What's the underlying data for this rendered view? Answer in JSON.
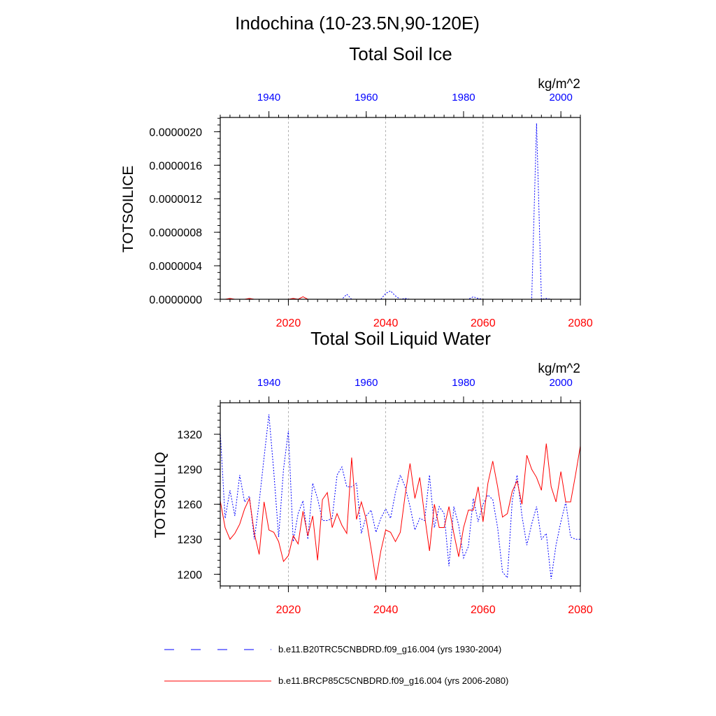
{
  "page_title": "Indochina (10-23.5N,90-120E)",
  "colors": {
    "hist": "#0000ff",
    "rcp": "#ff0000",
    "grid": "#a0a0a0",
    "axis": "#000000"
  },
  "legend": [
    {
      "label": "b.e11.B20TRC5CNBDRD.f09_g16.004 (yrs 1930-2004)",
      "color": "#0000ff",
      "dash": "dashed"
    },
    {
      "label": "b.e11.BRCP85C5CNBDRD.f09_g16.004 (yrs 2006-2080)",
      "color": "#ff0000",
      "dash": "solid"
    }
  ],
  "chart_data": [
    {
      "type": "line",
      "title": "Total Soil Ice",
      "units": "kg/m^2",
      "ylabel": "TOTSOILICE",
      "ylim": [
        0,
        2.17e-06
      ],
      "yticks": [
        0,
        4e-07,
        8e-07,
        1.2e-06,
        1.6e-06,
        2e-06
      ],
      "ytick_labels": [
        "0.0000000",
        "0.0000004",
        "0.0000008",
        "0.0000012",
        "0.0000016",
        "0.0000020"
      ],
      "x_bottom": {
        "range": [
          2006,
          2080
        ],
        "ticks": [
          2020,
          2040,
          2060,
          2080
        ],
        "color": "#ff0000"
      },
      "x_top": {
        "range": [
          1930,
          2004
        ],
        "ticks": [
          1940,
          1960,
          1980,
          2000
        ],
        "color": "#0000ff"
      },
      "grid_x": [
        2020,
        2040,
        2060
      ],
      "series": [
        {
          "axis": "top",
          "style": "dashed",
          "color": "#0000ff",
          "x": [
            1930,
            1931,
            1932,
            1933,
            1934,
            1935,
            1936,
            1937,
            1938,
            1939,
            1940,
            1941,
            1942,
            1943,
            1944,
            1945,
            1946,
            1947,
            1948,
            1949,
            1950,
            1951,
            1952,
            1953,
            1954,
            1955,
            1956,
            1957,
            1958,
            1959,
            1960,
            1961,
            1962,
            1963,
            1964,
            1965,
            1966,
            1967,
            1968,
            1969,
            1970,
            1971,
            1972,
            1973,
            1974,
            1975,
            1976,
            1977,
            1978,
            1979,
            1980,
            1981,
            1982,
            1983,
            1984,
            1985,
            1986,
            1987,
            1988,
            1989,
            1990,
            1991,
            1992,
            1993,
            1994,
            1995,
            1996,
            1997,
            1998,
            1999,
            2000,
            2001,
            2002,
            2003,
            2004
          ],
          "y": [
            0,
            0,
            0,
            0,
            0,
            0,
            0,
            0,
            0,
            0,
            0,
            0,
            0,
            0,
            0,
            0,
            0,
            0,
            0,
            0,
            0,
            0,
            0,
            0,
            0,
            0,
            6e-08,
            0,
            0,
            0,
            0,
            0,
            0,
            0,
            7e-08,
            1e-07,
            4e-08,
            0,
            1e-08,
            0,
            0,
            0,
            0,
            0,
            0,
            0,
            0,
            0,
            0,
            0,
            0,
            0,
            3e-08,
            1e-08,
            0,
            0,
            0,
            0,
            0,
            0,
            0,
            0,
            0,
            0,
            0,
            2.1e-06,
            0,
            1e-08,
            0,
            0,
            0,
            0,
            0,
            0,
            0
          ]
        },
        {
          "axis": "bottom",
          "style": "solid",
          "color": "#ff0000",
          "x": [
            2006,
            2007,
            2008,
            2009,
            2010,
            2011,
            2012,
            2013,
            2014,
            2015,
            2016,
            2017,
            2018,
            2019,
            2020,
            2021,
            2022,
            2023,
            2024,
            2025,
            2026,
            2027,
            2028,
            2029,
            2030,
            2031,
            2032,
            2033,
            2034,
            2035,
            2036,
            2037,
            2038,
            2039,
            2040,
            2041,
            2042,
            2043,
            2044,
            2045,
            2046,
            2047,
            2048,
            2049,
            2050,
            2051,
            2052,
            2053,
            2054,
            2055,
            2056,
            2057,
            2058,
            2059,
            2060,
            2061,
            2062,
            2063,
            2064,
            2065,
            2066,
            2067,
            2068,
            2069,
            2070,
            2071,
            2072,
            2073,
            2074,
            2075,
            2076,
            2077,
            2078,
            2079,
            2080
          ],
          "y": [
            0,
            0,
            1e-08,
            0,
            0,
            0,
            1e-08,
            0,
            0,
            0,
            0,
            0,
            0,
            0,
            0,
            1e-08,
            0,
            3e-08,
            0,
            0,
            0,
            0,
            0,
            0,
            0,
            0,
            0,
            0,
            0,
            0,
            0,
            0,
            0,
            0,
            0,
            0,
            0,
            0,
            0,
            0,
            0,
            0,
            0,
            0,
            0,
            0,
            0,
            0,
            0,
            0,
            0,
            0,
            0,
            0,
            0,
            0,
            0,
            0,
            0,
            0,
            0,
            0,
            0,
            0,
            0,
            0,
            0,
            0,
            0,
            0,
            0,
            0,
            0,
            0,
            0
          ]
        }
      ]
    },
    {
      "type": "line",
      "title": "Total Soil Liquid Water",
      "units": "kg/m^2",
      "ylabel": "TOTSOILLIQ",
      "ylim": [
        1190,
        1347
      ],
      "yticks": [
        1200,
        1230,
        1260,
        1290,
        1320
      ],
      "ytick_labels": [
        "1200",
        "1230",
        "1260",
        "1290",
        "1320"
      ],
      "x_bottom": {
        "range": [
          2006,
          2080
        ],
        "ticks": [
          2020,
          2040,
          2060,
          2080
        ],
        "color": "#ff0000"
      },
      "x_top": {
        "range": [
          1930,
          2004
        ],
        "ticks": [
          1940,
          1960,
          1980,
          2000
        ],
        "color": "#0000ff"
      },
      "grid_x": [
        2020,
        2040,
        2060
      ],
      "series": [
        {
          "axis": "top",
          "style": "dashed",
          "color": "#0000ff",
          "x": [
            1930,
            1931,
            1932,
            1933,
            1934,
            1935,
            1936,
            1937,
            1938,
            1939,
            1940,
            1941,
            1942,
            1943,
            1944,
            1945,
            1946,
            1947,
            1948,
            1949,
            1950,
            1951,
            1952,
            1953,
            1954,
            1955,
            1956,
            1957,
            1958,
            1959,
            1960,
            1961,
            1962,
            1963,
            1964,
            1965,
            1966,
            1967,
            1968,
            1969,
            1970,
            1971,
            1972,
            1973,
            1974,
            1975,
            1976,
            1977,
            1978,
            1979,
            1980,
            1981,
            1982,
            1983,
            1984,
            1985,
            1986,
            1987,
            1988,
            1989,
            1990,
            1991,
            1992,
            1993,
            1994,
            1995,
            1996,
            1997,
            1998,
            1999,
            2000,
            2001,
            2002,
            2003,
            2004
          ],
          "y": [
            1322,
            1248,
            1272,
            1250,
            1285,
            1262,
            1267,
            1230,
            1262,
            1300,
            1337,
            1288,
            1232,
            1290,
            1323,
            1228,
            1252,
            1263,
            1230,
            1278,
            1265,
            1246,
            1246,
            1248,
            1285,
            1292,
            1275,
            1275,
            1278,
            1235,
            1250,
            1255,
            1236,
            1248,
            1256,
            1248,
            1270,
            1285,
            1275,
            1258,
            1238,
            1248,
            1246,
            1285,
            1240,
            1258,
            1252,
            1207,
            1258,
            1242,
            1214,
            1224,
            1265,
            1245,
            1260,
            1268,
            1264,
            1240,
            1202,
            1197,
            1263,
            1285,
            1250,
            1225,
            1243,
            1258,
            1230,
            1235,
            1196,
            1225,
            1245,
            1262,
            1232,
            1230,
            1230
          ]
        },
        {
          "axis": "bottom",
          "style": "solid",
          "color": "#ff0000",
          "x": [
            2006,
            2007,
            2008,
            2009,
            2010,
            2011,
            2012,
            2013,
            2014,
            2015,
            2016,
            2017,
            2018,
            2019,
            2020,
            2021,
            2022,
            2023,
            2024,
            2025,
            2026,
            2027,
            2028,
            2029,
            2030,
            2031,
            2032,
            2033,
            2034,
            2035,
            2036,
            2037,
            2038,
            2039,
            2040,
            2041,
            2042,
            2043,
            2044,
            2045,
            2046,
            2047,
            2048,
            2049,
            2050,
            2051,
            2052,
            2053,
            2054,
            2055,
            2056,
            2057,
            2058,
            2059,
            2060,
            2061,
            2062,
            2063,
            2064,
            2065,
            2066,
            2067,
            2068,
            2069,
            2070,
            2071,
            2072,
            2073,
            2074,
            2075,
            2076,
            2077,
            2078,
            2079,
            2080
          ],
          "y": [
            1263,
            1240,
            1230,
            1235,
            1243,
            1256,
            1265,
            1235,
            1217,
            1262,
            1238,
            1236,
            1228,
            1211,
            1216,
            1233,
            1226,
            1254,
            1233,
            1250,
            1212,
            1264,
            1270,
            1240,
            1252,
            1242,
            1235,
            1300,
            1247,
            1262,
            1247,
            1222,
            1195,
            1220,
            1238,
            1236,
            1228,
            1236,
            1268,
            1295,
            1265,
            1283,
            1250,
            1220,
            1260,
            1240,
            1240,
            1258,
            1235,
            1215,
            1240,
            1255,
            1255,
            1275,
            1245,
            1278,
            1297,
            1275,
            1249,
            1252,
            1271,
            1280,
            1260,
            1302,
            1290,
            1283,
            1272,
            1312,
            1275,
            1262,
            1288,
            1262,
            1262,
            1285,
            1310
          ]
        }
      ]
    }
  ]
}
